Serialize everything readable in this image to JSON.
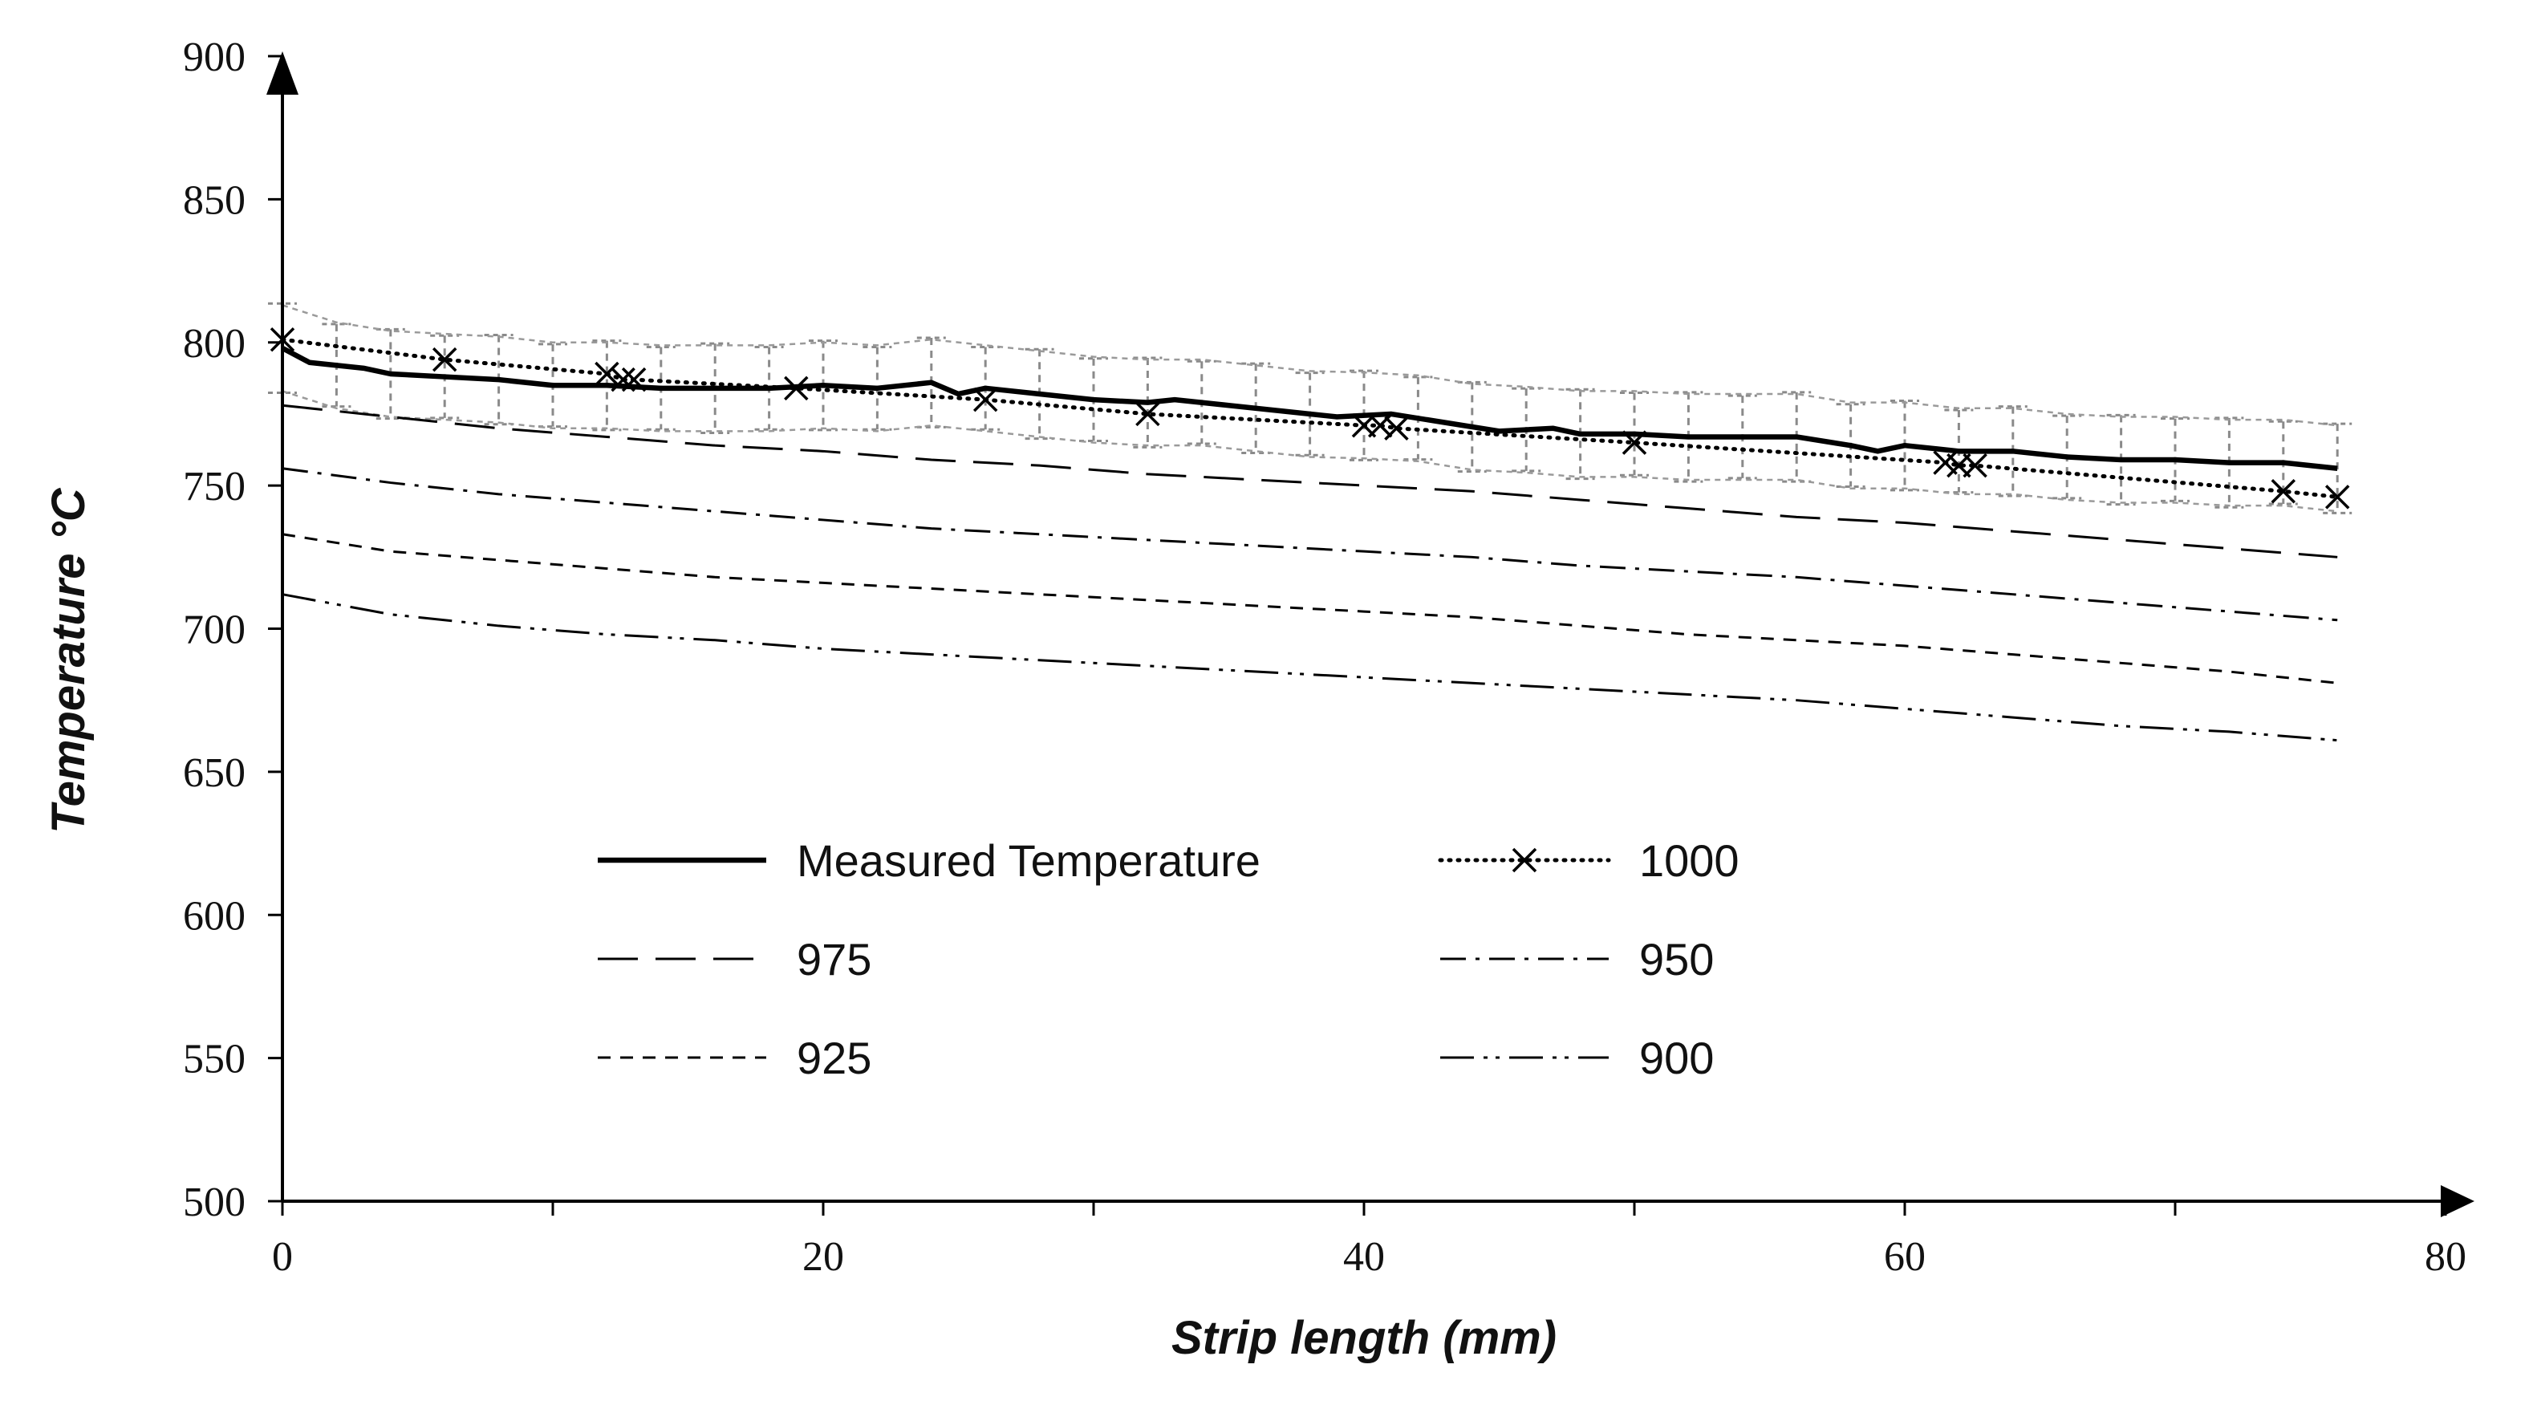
{
  "chart_data": {
    "type": "line",
    "title": "",
    "xlabel": "Strip length (mm)",
    "ylabel": "Temperature °C",
    "xlim": [
      0,
      80
    ],
    "ylim": [
      500,
      900
    ],
    "xticks": [
      0,
      20,
      40,
      60,
      80
    ],
    "xminor": [
      10,
      30,
      50,
      70
    ],
    "yticks": [
      500,
      550,
      600,
      650,
      700,
      750,
      800,
      850,
      900
    ],
    "grid": false,
    "legend_position": "center",
    "error_band": {
      "series": "Measured Temperature",
      "half_width": 15,
      "step": 2
    },
    "series": [
      {
        "name": "Measured Temperature",
        "style": "solid-thick",
        "x": [
          0,
          1,
          3,
          4,
          6,
          8,
          10,
          12,
          14,
          16,
          18,
          20,
          22,
          24,
          25,
          26,
          28,
          30,
          32,
          33,
          35,
          37,
          39,
          41,
          43,
          45,
          47,
          48,
          50,
          52,
          54,
          56,
          58,
          59,
          60,
          62,
          64,
          66,
          68,
          70,
          72,
          74,
          76
        ],
        "y": [
          798,
          793,
          791,
          789,
          788,
          787,
          785,
          785,
          784,
          784,
          784,
          785,
          784,
          786,
          782,
          784,
          782,
          780,
          779,
          780,
          778,
          776,
          774,
          775,
          772,
          769,
          770,
          768,
          768,
          767,
          767,
          767,
          764,
          762,
          764,
          762,
          762,
          760,
          759,
          759,
          758,
          758,
          756
        ]
      },
      {
        "name": "1000",
        "style": "dotted-x",
        "x": [
          0,
          6,
          12,
          12.6,
          13,
          19,
          26,
          32,
          40,
          40.6,
          41.2,
          50,
          61.5,
          62,
          62.6,
          74,
          76
        ],
        "y": [
          801,
          794,
          789,
          787,
          787,
          784,
          780,
          775,
          771,
          771,
          770,
          765,
          758,
          757,
          757,
          748,
          746
        ],
        "markers": [
          0,
          6,
          12,
          12.6,
          13,
          19,
          26,
          32,
          40,
          40.6,
          41.2,
          50,
          61.5,
          62,
          62.6,
          74,
          76
        ]
      },
      {
        "name": "975",
        "style": "long-dash",
        "x": [
          0,
          4,
          8,
          12,
          16,
          20,
          24,
          28,
          32,
          36,
          40,
          44,
          48,
          52,
          56,
          60,
          64,
          68,
          72,
          76
        ],
        "y": [
          778,
          774,
          770,
          767,
          764,
          762,
          759,
          757,
          754,
          752,
          750,
          748,
          745,
          742,
          739,
          737,
          734,
          731,
          728,
          725
        ]
      },
      {
        "name": "950",
        "style": "dash-dot",
        "x": [
          0,
          4,
          8,
          12,
          16,
          20,
          24,
          28,
          32,
          36,
          40,
          44,
          48,
          52,
          56,
          60,
          64,
          68,
          72,
          76
        ],
        "y": [
          756,
          751,
          747,
          744,
          741,
          738,
          735,
          733,
          731,
          729,
          727,
          725,
          722,
          720,
          718,
          715,
          712,
          709,
          706,
          703
        ]
      },
      {
        "name": "925",
        "style": "short-dash",
        "x": [
          0,
          4,
          8,
          12,
          16,
          20,
          24,
          28,
          32,
          36,
          40,
          44,
          48,
          52,
          56,
          60,
          64,
          68,
          72,
          76
        ],
        "y": [
          733,
          727,
          724,
          721,
          718,
          716,
          714,
          712,
          710,
          708,
          706,
          704,
          701,
          698,
          696,
          694,
          691,
          688,
          685,
          681
        ]
      },
      {
        "name": "900",
        "style": "dash-dot-dot",
        "x": [
          0,
          4,
          8,
          12,
          16,
          20,
          24,
          28,
          32,
          36,
          40,
          44,
          48,
          52,
          56,
          60,
          64,
          68,
          72,
          76
        ],
        "y": [
          712,
          705,
          701,
          698,
          696,
          693,
          691,
          689,
          687,
          685,
          683,
          681,
          679,
          677,
          675,
          672,
          669,
          666,
          664,
          661
        ]
      }
    ],
    "legend": [
      {
        "label": "Measured Temperature",
        "style": "solid-thick"
      },
      {
        "label": "1000",
        "style": "dotted-x"
      },
      {
        "label": "975",
        "style": "long-dash"
      },
      {
        "label": "950",
        "style": "dash-dot"
      },
      {
        "label": "925",
        "style": "short-dash"
      },
      {
        "label": "900",
        "style": "dash-dot-dot"
      }
    ]
  }
}
